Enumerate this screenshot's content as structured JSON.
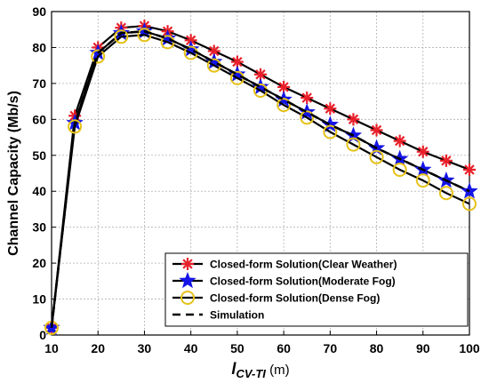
{
  "chart_data": {
    "type": "line",
    "xlabel": {
      "main": "l",
      "sub": "CV-TI",
      "unit": " (m)"
    },
    "ylabel": "Channel Capacity (Mb/s)",
    "xlim": [
      10,
      100
    ],
    "ylim": [
      0,
      90
    ],
    "xticks": [
      10,
      20,
      30,
      40,
      50,
      60,
      70,
      80,
      90,
      100
    ],
    "yticks": [
      0,
      10,
      20,
      30,
      40,
      50,
      60,
      70,
      80,
      90
    ],
    "grid": true,
    "legend_position": "bottom-right",
    "x": [
      10,
      15,
      20,
      25,
      30,
      35,
      40,
      45,
      50,
      55,
      60,
      65,
      70,
      75,
      80,
      85,
      90,
      95,
      100
    ],
    "series": [
      {
        "name": "Closed-form Solution(Clear Weather)",
        "color": "#e8202a",
        "marker": "asterisk",
        "values": [
          2,
          61,
          80,
          85.5,
          86,
          84.5,
          82,
          79,
          76,
          72.5,
          69,
          66,
          63,
          60,
          57,
          54,
          51,
          48.5,
          46
        ]
      },
      {
        "name": "Closed-form Solution(Moderate Fog)",
        "color": "#1414e6",
        "marker": "star",
        "values": [
          2,
          59,
          78.5,
          84,
          84.5,
          82.5,
          79.5,
          76,
          72.5,
          69,
          65.5,
          62,
          58.5,
          55.5,
          52,
          49,
          46,
          43,
          40
        ]
      },
      {
        "name": "Closed-form Solution(Dense Fog)",
        "color": "#e6c21a",
        "marker": "circle",
        "values": [
          2,
          58,
          77.5,
          83,
          83.5,
          81.5,
          78.5,
          75,
          71.5,
          68,
          64,
          60.5,
          56.5,
          53,
          49.5,
          46,
          43,
          39.5,
          36.5
        ]
      },
      {
        "name": "Simulation",
        "color": "#000000",
        "marker": "none",
        "dashed": true,
        "values": [
          2,
          59,
          78.5,
          84,
          84.5,
          82.5,
          79.5,
          76,
          72.5,
          69,
          65.5,
          62,
          58.5,
          55.5,
          52,
          49,
          46,
          43,
          40
        ]
      }
    ]
  }
}
